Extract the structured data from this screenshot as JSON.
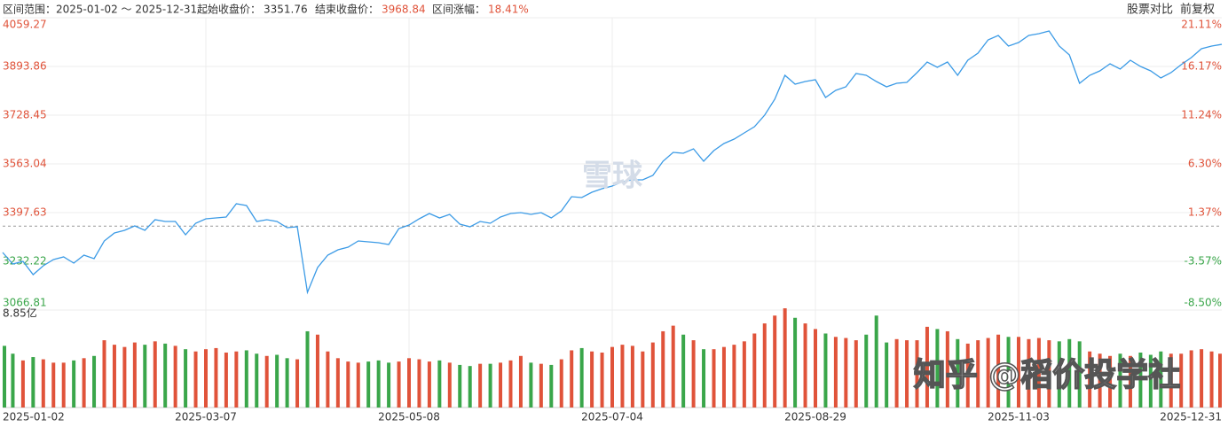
{
  "header": {
    "range_label": "区间范围：",
    "range": "2025-01-02 ～ 2025-12-31",
    "start_label": "起始收盘价：",
    "start_close": 3351.76,
    "end_label": "结束收盘价：",
    "end_close": 3968.84,
    "change_label": "区间涨幅：",
    "change": "18.41%",
    "compare": "股票对比",
    "adjust": "前复权"
  },
  "watermarks": {
    "brand": "雪球",
    "author": "知乎 @稻价投学社"
  },
  "chart_data": {
    "type": "line",
    "color": "#3c9be6",
    "up_color": "#e0533a",
    "down_color": "#3aa64a",
    "categories": [
      "2025-01-02",
      null,
      null,
      null,
      null,
      null,
      null,
      null,
      null,
      null,
      null,
      null,
      null,
      null,
      null,
      null,
      null,
      null,
      null,
      null,
      "2025-03-07",
      null,
      null,
      null,
      null,
      null,
      null,
      null,
      null,
      null,
      null,
      null,
      null,
      null,
      null,
      null,
      null,
      null,
      null,
      null,
      "2025-05-08",
      null,
      null,
      null,
      null,
      null,
      null,
      null,
      null,
      null,
      null,
      null,
      null,
      null,
      null,
      null,
      null,
      null,
      null,
      null,
      "2025-07-04",
      null,
      null,
      null,
      null,
      null,
      null,
      null,
      null,
      null,
      null,
      null,
      null,
      null,
      null,
      null,
      null,
      null,
      null,
      null,
      "2025-08-29",
      null,
      null,
      null,
      null,
      null,
      null,
      null,
      null,
      null,
      null,
      null,
      null,
      null,
      null,
      null,
      null,
      null,
      null,
      null,
      "2025-11-03",
      null,
      null,
      null,
      null,
      null,
      null,
      null,
      null,
      null,
      null,
      null,
      null,
      null,
      null,
      null,
      null,
      null,
      null,
      null,
      "2025-12-31"
    ],
    "values": [
      3262.28,
      3223.18,
      3232.21,
      3187.09,
      3217.17,
      3238.22,
      3247.24,
      3226.19,
      3253.26,
      3241.23,
      3301.38,
      3328.45,
      3337.47,
      3352.51,
      3337.47,
      3373.56,
      3367.54,
      3367.54,
      3322.43,
      3361.53,
      3376.57,
      3379.57,
      3382.58,
      3427.69,
      3421.68,
      3367.54,
      3373.56,
      3367.54,
      3346.49,
      3349.5,
      3126.94,
      3211.15,
      3253.26,
      3271.3,
      3280.33,
      3301.38,
      3298.37,
      3295.36,
      3289.35,
      3343.48,
      3355.51,
      3376.57,
      3394.61,
      3379.57,
      3391.6,
      3358.52,
      3349.5,
      3367.54,
      3361.53,
      3382.58,
      3394.61,
      3397.62,
      3391.6,
      3397.62,
      3379.57,
      3403.63,
      3451.75,
      3448.75,
      3466.79,
      3478.82,
      3487.84,
      3502.88,
      3508.9,
      3508.9,
      3523.93,
      3572.05,
      3602.13,
      3599.12,
      3614.16,
      3572.05,
      3608.14,
      3632.2,
      3647.24,
      3668.29,
      3689.35,
      3728.44,
      3782.58,
      3863.78,
      3833.71,
      3842.73,
      3848.74,
      3788.59,
      3812.65,
      3824.68,
      3869.8,
      3863.78,
      3842.73,
      3824.68,
      3836.71,
      3839.72,
      3872.8,
      3908.89,
      3890.85,
      3908.89,
      3863.78,
      3914.91,
      3938.97,
      3984.08,
      3999.12,
      3963.03,
      3975.06,
      3999.12,
      4005.13,
      4014.16,
      3963.03,
      3932.95,
      3836.71,
      3863.78,
      3878.82,
      3902.88,
      3884.83,
      3914.91,
      3893.86,
      3878.82,
      3854.76,
      3872.8,
      3899.87,
      3923.93,
      3954.01,
      3963.03,
      3968.84
    ],
    "volume": [
      5.5,
      4.8,
      4.2,
      4.5,
      4.3,
      4.0,
      4.0,
      4.2,
      4.4,
      4.6,
      6.0,
      5.6,
      5.4,
      5.8,
      5.6,
      5.9,
      5.7,
      5.5,
      5.2,
      5.0,
      5.2,
      5.3,
      4.9,
      5.0,
      5.1,
      4.8,
      4.6,
      4.7,
      4.4,
      4.3,
      6.8,
      6.5,
      5.0,
      4.4,
      4.1,
      4.0,
      4.1,
      4.2,
      4.0,
      4.1,
      4.4,
      4.3,
      4.1,
      4.2,
      4.0,
      3.8,
      3.7,
      3.9,
      3.9,
      4.0,
      4.2,
      4.6,
      4.0,
      3.9,
      3.8,
      4.3,
      5.1,
      5.3,
      5.0,
      4.9,
      5.4,
      5.6,
      5.5,
      5.0,
      5.8,
      6.8,
      7.3,
      6.5,
      6.0,
      5.2,
      5.2,
      5.4,
      5.6,
      5.9,
      6.6,
      7.5,
      8.2,
      8.85,
      8.0,
      7.5,
      7.0,
      6.6,
      6.3,
      6.2,
      6.0,
      6.5,
      8.2,
      5.8,
      6.1,
      6.0,
      6.0,
      7.2,
      7.0,
      6.8,
      6.1,
      5.7,
      6.0,
      6.2,
      6.5,
      6.3,
      6.3,
      6.1,
      6.2,
      6.0,
      5.9,
      6.1,
      5.9,
      5.0,
      4.8,
      4.6,
      4.8,
      4.6,
      4.9,
      4.7,
      5.0,
      4.8,
      4.8,
      5.1,
      5.2,
      5.0,
      4.8
    ],
    "ylim": [
      3066.81,
      4059.27
    ],
    "yticks": [
      4059.27,
      3893.86,
      3728.45,
      3563.04,
      3397.63,
      3232.22,
      3066.81
    ],
    "y2lim": [
      -8.5,
      21.11
    ],
    "y2ticks": [
      {
        "value": 21.11,
        "label": "21.11%"
      },
      {
        "value": 16.17,
        "label": "16.17%"
      },
      {
        "value": 11.24,
        "label": "11.24%"
      },
      {
        "value": 6.3,
        "label": "6.30%"
      },
      {
        "value": 1.37,
        "label": "1.37%"
      },
      {
        "value": -3.57,
        "label": "-3.57%"
      },
      {
        "value": -8.5,
        "label": "-8.50%"
      }
    ],
    "volume_lim": [
      0,
      8.85
    ],
    "volume_ticks": [
      {
        "value": 8.85,
        "label": "8.85亿"
      }
    ],
    "grid": true
  }
}
